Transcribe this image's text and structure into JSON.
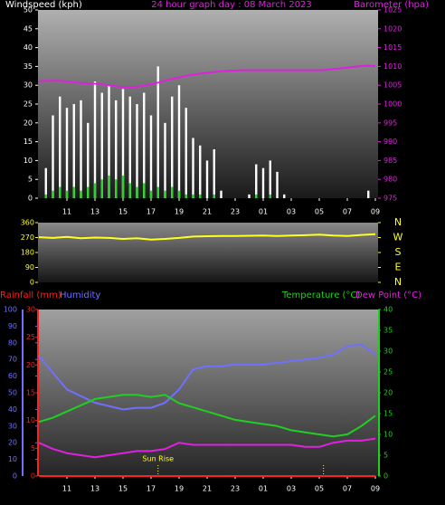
{
  "chart_data": [
    {
      "type": "bar",
      "title": "24 hour graph day : 08 March 2023",
      "x": [
        9,
        9.5,
        10,
        10.5,
        11,
        11.5,
        12,
        12.5,
        13,
        13.5,
        14,
        14.5,
        15,
        15.5,
        16,
        16.5,
        17,
        17.5,
        18,
        18.5,
        19,
        19.5,
        20,
        20.5,
        21,
        21.5,
        22,
        22.5,
        23,
        23.5,
        24,
        24.5,
        25,
        25.5,
        26,
        26.5,
        27,
        27.5,
        28,
        28.5,
        29,
        29.5,
        30,
        30.5,
        31,
        31.5,
        32,
        32.5,
        33
      ],
      "series": [
        {
          "name": "Windspeed (kph)",
          "type": "bar",
          "axis": "y",
          "color": "#ffffff",
          "values": [
            0,
            8,
            22,
            27,
            24,
            25,
            26,
            20,
            31,
            28,
            30,
            26,
            29,
            27,
            25,
            28,
            22,
            35,
            20,
            27,
            30,
            24,
            16,
            14,
            10,
            13,
            2,
            0,
            0,
            0,
            1,
            9,
            8,
            10,
            7,
            1,
            0,
            0,
            0,
            0,
            0,
            0,
            0,
            0,
            0,
            0,
            0,
            2,
            0
          ]
        },
        {
          "type": "bar",
          "axis": "y",
          "color": "#30d030",
          "values": [
            0,
            1,
            2,
            3,
            2,
            3,
            2,
            3,
            4,
            5,
            6,
            5,
            6,
            4,
            3,
            4,
            2,
            3,
            2,
            3,
            2,
            1,
            1,
            1,
            0,
            1,
            0,
            0,
            0,
            0,
            0,
            1,
            0,
            1,
            0,
            0,
            0,
            0,
            0,
            0,
            0,
            0,
            0,
            0,
            0,
            0,
            0,
            0,
            0
          ]
        },
        {
          "name": "Barometer (hpa)",
          "type": "line",
          "axis": "y2",
          "color": "#e020e0",
          "values": [
            1006,
            1006.2,
            1006.2,
            1006.2,
            1006,
            1005.8,
            1005.6,
            1005.5,
            1005.4,
            1005.2,
            1005,
            1004.7,
            1004.5,
            1004.5,
            1004.6,
            1004.9,
            1005.3,
            1005.7,
            1006.2,
            1006.7,
            1007.1,
            1007.5,
            1007.8,
            1008.1,
            1008.3,
            1008.5,
            1008.7,
            1008.8,
            1008.9,
            1009,
            1009,
            1009,
            1009,
            1009,
            1009,
            1009,
            1009,
            1009,
            1009,
            1009,
            1009,
            1009.1,
            1009.3,
            1009.5,
            1009.7,
            1009.9,
            1010.1,
            1010.2,
            1010.1
          ]
        }
      ],
      "xlim": [
        9,
        33
      ],
      "xticks": [
        11,
        13,
        15,
        17,
        19,
        21,
        23,
        {
          "value": 25,
          "label": "01"
        },
        {
          "value": 27,
          "label": "03"
        },
        {
          "value": 29,
          "label": "05"
        },
        {
          "value": 31,
          "label": "07"
        },
        {
          "value": 33,
          "label": "09"
        }
      ],
      "ylim": [
        0,
        50
      ],
      "yticks": [
        0,
        5,
        10,
        15,
        20,
        25,
        30,
        35,
        40,
        45,
        50
      ],
      "y2lim": [
        975,
        1025
      ],
      "y2ticks": [
        975,
        980,
        985,
        990,
        995,
        1000,
        1005,
        1010,
        1015,
        1020,
        1025
      ]
    },
    {
      "type": "line",
      "x": [
        9,
        10,
        11,
        12,
        13,
        14,
        15,
        16,
        17,
        18,
        19,
        20,
        21,
        22,
        23,
        24,
        25,
        26,
        27,
        28,
        29,
        30,
        31,
        32,
        33
      ],
      "series": [
        {
          "type": "line",
          "axis": "y",
          "color": "#ffff20",
          "values": [
            272,
            268,
            274,
            266,
            270,
            268,
            262,
            266,
            258,
            262,
            268,
            276,
            278,
            280,
            280,
            281,
            282,
            280,
            282,
            284,
            288,
            282,
            280,
            286,
            290
          ]
        }
      ],
      "xlim": [
        9,
        33
      ],
      "ylim": [
        0,
        360
      ],
      "yticks": [
        0,
        90,
        180,
        270,
        360
      ],
      "y2lim": [
        0,
        360
      ],
      "y2ticks": [
        {
          "value": 0,
          "label": "N"
        },
        {
          "value": 90,
          "label": "E"
        },
        {
          "value": 180,
          "label": "S"
        },
        {
          "value": 270,
          "label": "W"
        },
        {
          "value": 360,
          "label": "N"
        }
      ]
    },
    {
      "type": "line",
      "axis_lines": true,
      "x": [
        9,
        10,
        11,
        12,
        13,
        14,
        15,
        16,
        17,
        18,
        19,
        20,
        21,
        22,
        23,
        24,
        25,
        26,
        27,
        28,
        29,
        30,
        31,
        32,
        33
      ],
      "series": [
        {
          "name": "Rainfall (mm)",
          "type": "line",
          "axis": "y3",
          "color": "#ff2020",
          "values": [
            0,
            0,
            0,
            0,
            0,
            0,
            0,
            0,
            0,
            0,
            0,
            0,
            0,
            0,
            0,
            0,
            0,
            0,
            0,
            0,
            0,
            0,
            0,
            0,
            0
          ]
        },
        {
          "name": "Humidity",
          "type": "line",
          "axis": "y",
          "color": "#7070ff",
          "values": [
            72,
            62,
            52,
            48,
            44,
            42,
            40,
            41,
            41,
            44,
            52,
            64,
            66,
            66,
            67,
            67,
            67,
            68,
            69,
            70,
            71,
            73,
            78,
            79,
            73
          ]
        },
        {
          "name": "Temperature (°C)",
          "type": "line",
          "axis": "y2",
          "color": "#20d020",
          "values": [
            13,
            14,
            15.5,
            17,
            18.5,
            19,
            19.5,
            19.5,
            19,
            19.5,
            17.5,
            16.5,
            15.5,
            14.5,
            13.5,
            13,
            12.5,
            12,
            11,
            10.5,
            10,
            9.5,
            10,
            12,
            14.5
          ]
        },
        {
          "name": "Dew Point (°C)",
          "type": "line",
          "axis": "y2",
          "color": "#e020e0",
          "values": [
            8,
            6.5,
            5.5,
            5,
            4.5,
            5,
            5.5,
            6,
            6,
            6.5,
            8,
            7.5,
            7.5,
            7.5,
            7.5,
            7.5,
            7.5,
            7.5,
            7.5,
            7,
            7,
            8,
            8.5,
            8.5,
            9
          ]
        }
      ],
      "markers": [
        {
          "label": "Sun Rise",
          "x": 17.5
        },
        {
          "x": 29.3
        }
      ],
      "xlim": [
        9,
        33
      ],
      "xticks": [
        11,
        13,
        15,
        17,
        19,
        21,
        23,
        {
          "value": 25,
          "label": "01"
        },
        {
          "value": 27,
          "label": "03"
        },
        {
          "value": 29,
          "label": "05"
        },
        {
          "value": 31,
          "label": "07"
        },
        {
          "value": 33,
          "label": "09"
        }
      ],
      "ylim": [
        0,
        100
      ],
      "yticks": [
        0,
        10,
        20,
        30,
        40,
        50,
        60,
        70,
        80,
        90,
        100
      ],
      "y2lim": [
        0,
        40
      ],
      "y2ticks": [
        0,
        5,
        10,
        15,
        20,
        25,
        30,
        35,
        40
      ],
      "y3lim": [
        0,
        30
      ],
      "y3ticks": [
        0,
        5,
        10,
        15,
        20,
        25,
        30
      ]
    }
  ]
}
